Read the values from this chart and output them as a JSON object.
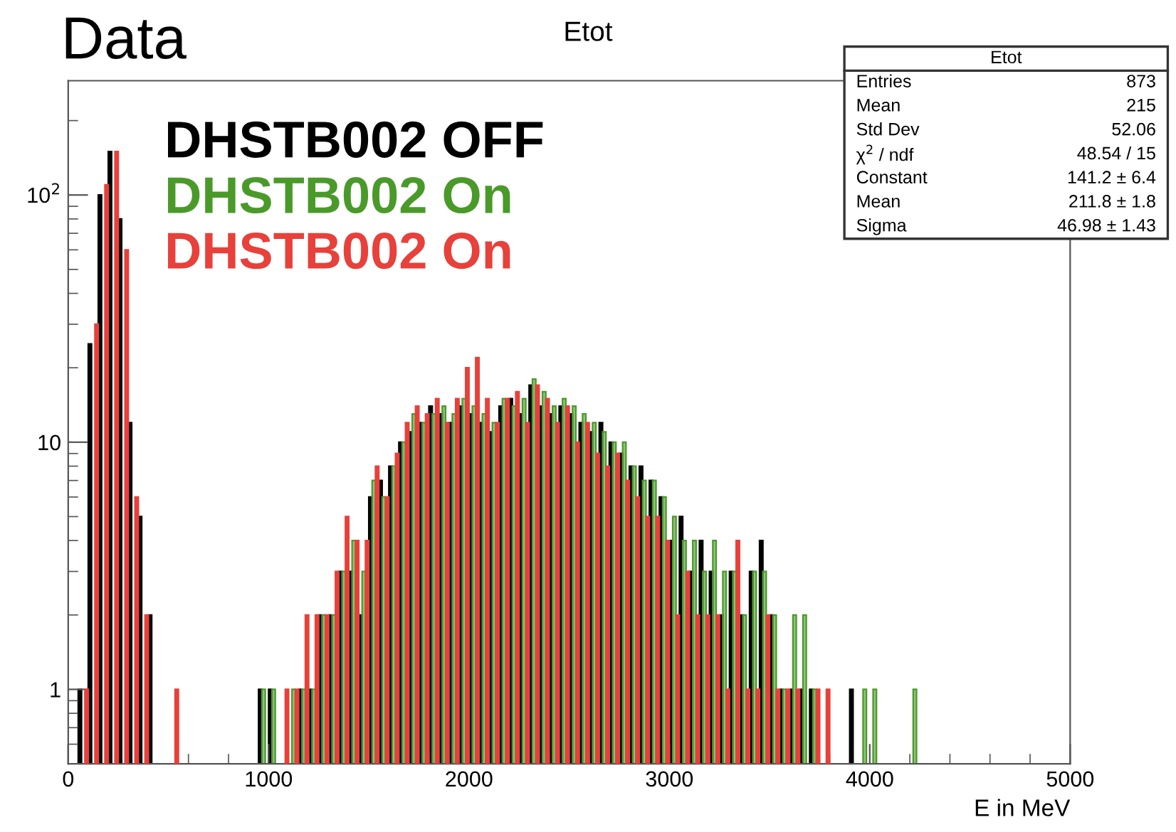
{
  "chart_data": {
    "type": "histogram",
    "title": "Etot",
    "xlabel": "E in MeV",
    "bins": [
      0,
      50,
      100,
      150,
      200,
      250,
      300,
      350,
      400,
      450,
      500,
      550,
      600,
      650,
      700,
      750,
      800,
      850,
      900,
      950,
      1000,
      1050,
      1100,
      1150,
      1200,
      1250,
      1300,
      1350,
      1400,
      1450,
      1500,
      1550,
      1600,
      1650,
      1700,
      1750,
      1800,
      1850,
      1900,
      1950,
      2000,
      2050,
      2100,
      2150,
      2200,
      2250,
      2300,
      2350,
      2400,
      2450,
      2500,
      2550,
      2600,
      2650,
      2700,
      2750,
      2800,
      2850,
      2900,
      2950,
      3000,
      3050,
      3100,
      3150,
      3200,
      3250,
      3300,
      3350,
      3400,
      3450,
      3500,
      3550,
      3600,
      3650,
      3700,
      3750,
      3800,
      3850,
      3900,
      3950,
      4000,
      4050,
      4100,
      4150,
      4200,
      4250,
      4300
    ],
    "series": [
      {
        "name": "DHSTB002 OFF",
        "color": "#000000",
        "values": [
          null,
          1,
          25,
          100,
          150,
          80,
          12,
          5,
          2,
          null,
          null,
          null,
          null,
          null,
          null,
          null,
          null,
          null,
          null,
          1,
          1,
          null,
          null,
          1,
          1,
          2,
          2,
          3,
          3,
          2,
          6,
          7,
          8,
          10,
          11,
          12,
          14,
          13,
          12,
          14,
          13,
          12,
          11,
          14,
          15,
          13,
          17,
          14,
          13,
          14,
          13,
          12,
          11,
          12,
          10,
          9,
          8,
          8,
          7,
          6,
          4,
          5,
          3,
          4,
          3,
          2,
          3,
          2,
          3,
          4,
          2,
          1,
          1,
          1,
          1,
          null,
          null,
          null,
          1,
          null,
          null,
          null,
          null,
          null,
          null,
          null
        ]
      },
      {
        "name": "DHSTB002 On",
        "color": "#4a9a2a",
        "values": [
          null,
          null,
          null,
          null,
          null,
          null,
          null,
          null,
          null,
          null,
          null,
          null,
          null,
          null,
          null,
          null,
          null,
          null,
          null,
          1,
          1,
          null,
          1,
          1,
          1,
          2,
          2,
          3,
          4,
          3,
          7,
          6,
          8,
          10,
          13,
          12,
          13,
          14,
          13,
          15,
          14,
          13,
          12,
          15,
          14,
          15,
          18,
          16,
          14,
          15,
          14,
          13,
          12,
          11,
          10,
          10,
          8,
          7,
          7,
          6,
          5,
          4,
          4,
          3,
          4,
          3,
          3,
          2,
          3,
          3,
          2,
          1,
          2,
          2,
          1,
          null,
          null,
          null,
          null,
          1,
          1,
          null,
          null,
          null,
          1,
          null
        ]
      },
      {
        "name": "DHSTB002 On",
        "color": "#e8403a",
        "values": [
          null,
          1,
          30,
          110,
          150,
          60,
          6,
          2,
          null,
          null,
          1,
          null,
          null,
          null,
          null,
          null,
          null,
          null,
          null,
          null,
          null,
          1,
          1,
          2,
          2,
          2,
          3,
          5,
          4,
          4,
          8,
          6,
          9,
          12,
          14,
          13,
          15,
          12,
          15,
          20,
          22,
          15,
          12,
          15,
          16,
          12,
          17,
          15,
          12,
          14,
          10,
          12,
          9,
          8,
          9,
          7,
          6,
          5,
          5,
          4,
          2,
          3,
          2,
          2,
          2,
          1,
          4,
          1,
          1,
          2,
          1,
          1,
          1,
          null,
          1,
          1,
          null,
          null,
          null,
          null,
          null,
          null,
          null,
          null,
          null,
          null
        ]
      }
    ],
    "log": "y",
    "xlim": [
      0,
      5000
    ],
    "xticks": [
      0,
      1000,
      2000,
      3000,
      4000,
      5000
    ],
    "ylim": [
      0.5,
      290
    ],
    "yticks": [
      1,
      10,
      {
        "value": 100,
        "label": "10$^{2}$"
      }
    ],
    "grid": false,
    "legend": "top left",
    "annotations": [
      "Data",
      "Etot",
      "Entries",
      "873",
      "Mean",
      "215",
      "Std Dev",
      "52.06",
      "χ$^{2}$ / ndf",
      "48.54 / 15",
      "Constant",
      "141.2 ± 6.4",
      "Mean",
      "211.8 ± 1.8",
      "Sigma",
      "46.98 ± 1.43"
    ]
  }
}
